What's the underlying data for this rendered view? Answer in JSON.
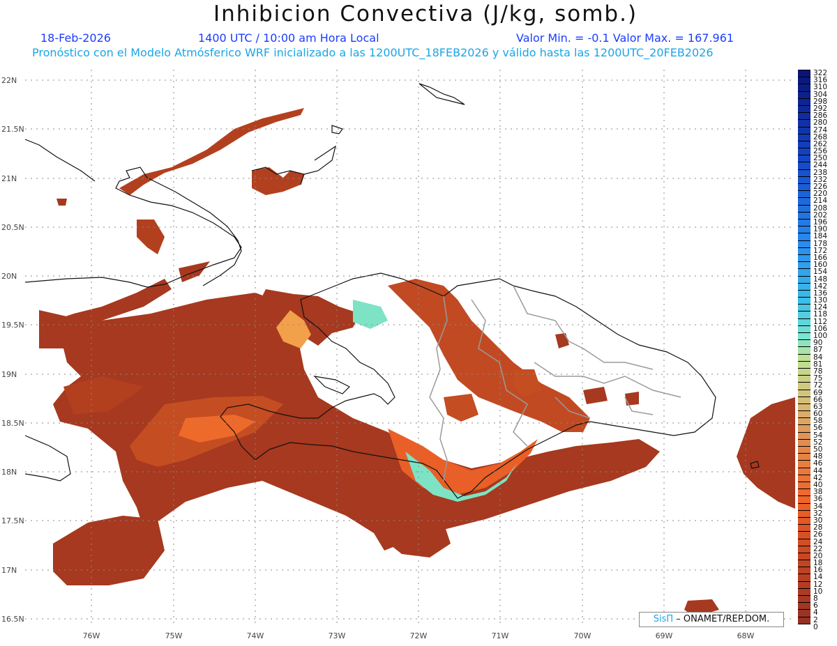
{
  "header": {
    "title": "Inhibicion Convectiva (J/kg, somb.)",
    "date": "18-Feb-2026",
    "time": "1400 UTC / 10:00 am Hora Local",
    "minmax": "Valor Min. = -0.1  Valor Max. = 167.961",
    "forecast": "Pronóstico con el Modelo Atmósferico WRF inicializado a las 1200UTC_18FEB2026 y válido hasta las  1200UTC_20FEB2026"
  },
  "map": {
    "lat_labels": [
      "22N",
      "21.5N",
      "21N",
      "20.5N",
      "20N",
      "19.5N",
      "19N",
      "18.5N",
      "18N",
      "17.5N",
      "17N",
      "16.5N"
    ],
    "lon_labels": [
      "76W",
      "75W",
      "74W",
      "73W",
      "72W",
      "71W",
      "70W",
      "69W",
      "68W"
    ]
  },
  "colorbar": {
    "labels": [
      "322",
      "316",
      "310",
      "304",
      "298",
      "292",
      "286",
      "280",
      "274",
      "268",
      "262",
      "256",
      "250",
      "244",
      "238",
      "232",
      "226",
      "220",
      "214",
      "208",
      "202",
      "196",
      "190",
      "184",
      "178",
      "172",
      "166",
      "160",
      "154",
      "148",
      "142",
      "136",
      "130",
      "124",
      "118",
      "112",
      "106",
      "100",
      "90",
      "87",
      "84",
      "81",
      "78",
      "75",
      "72",
      "69",
      "66",
      "63",
      "60",
      "58",
      "56",
      "54",
      "52",
      "50",
      "48",
      "46",
      "44",
      "42",
      "40",
      "38",
      "36",
      "34",
      "32",
      "30",
      "28",
      "26",
      "24",
      "22",
      "20",
      "18",
      "16",
      "14",
      "12",
      "10",
      "8",
      "6",
      "4",
      "2",
      "0"
    ]
  },
  "credit": {
    "sis": "SisΠ",
    "text": "– ONAMET/REP.DOM."
  }
}
